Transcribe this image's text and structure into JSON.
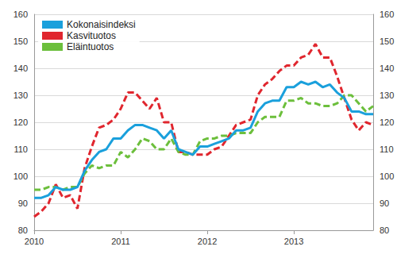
{
  "chart_data": {
    "type": "line",
    "categories": [
      "2010",
      null,
      null,
      null,
      null,
      null,
      null,
      null,
      null,
      null,
      null,
      null,
      "2011",
      null,
      null,
      null,
      null,
      null,
      null,
      null,
      null,
      null,
      null,
      null,
      "2012",
      null,
      null,
      null,
      null,
      null,
      null,
      null,
      null,
      null,
      null,
      null,
      "2013",
      null,
      null,
      null,
      null,
      null,
      null,
      null,
      null,
      null,
      null,
      null
    ],
    "series": [
      {
        "name": "Kokonaisindeksi",
        "color": "#1aa0dc",
        "line_style": "solid",
        "values": [
          92,
          92,
          93,
          96,
          95,
          95,
          96,
          102,
          106,
          109,
          110,
          114,
          114,
          117,
          119,
          119,
          118,
          117,
          114,
          117,
          110,
          109,
          108,
          111,
          111,
          112,
          113,
          114,
          117,
          117,
          118,
          124,
          127,
          128,
          128,
          133,
          133,
          135,
          134,
          135,
          133,
          134,
          131,
          129,
          124,
          124,
          123,
          123
        ]
      },
      {
        "name": "Kasvituotos",
        "color": "#e0262e",
        "line_style": "dashed",
        "values": [
          85,
          87,
          90,
          97,
          92,
          93,
          88,
          103,
          111,
          118,
          119,
          121,
          125,
          131,
          131,
          128,
          125,
          129,
          120,
          120,
          109,
          109,
          108,
          108,
          108,
          110,
          111,
          115,
          119,
          120,
          121,
          130,
          134,
          136,
          139,
          141,
          141,
          144,
          145,
          149,
          144,
          144,
          137,
          129,
          121,
          117,
          120,
          119
        ]
      },
      {
        "name": "Eläintuotos",
        "color": "#6cbf3c",
        "line_style": "dashed",
        "values": [
          95,
          95,
          96,
          96,
          95,
          96,
          96,
          101,
          104,
          103,
          104,
          104,
          109,
          107,
          110,
          114,
          113,
          110,
          110,
          114,
          109,
          108,
          108,
          113,
          114,
          114,
          115,
          115,
          116,
          116,
          116,
          120,
          122,
          122,
          122,
          128,
          128,
          129,
          127,
          127,
          126,
          126,
          127,
          130,
          130,
          127,
          124,
          126
        ]
      }
    ],
    "ylim": [
      80,
      160
    ],
    "yticks": [
      80,
      90,
      100,
      110,
      120,
      130,
      140,
      150,
      160
    ],
    "grid": true,
    "legend": "top-left"
  }
}
